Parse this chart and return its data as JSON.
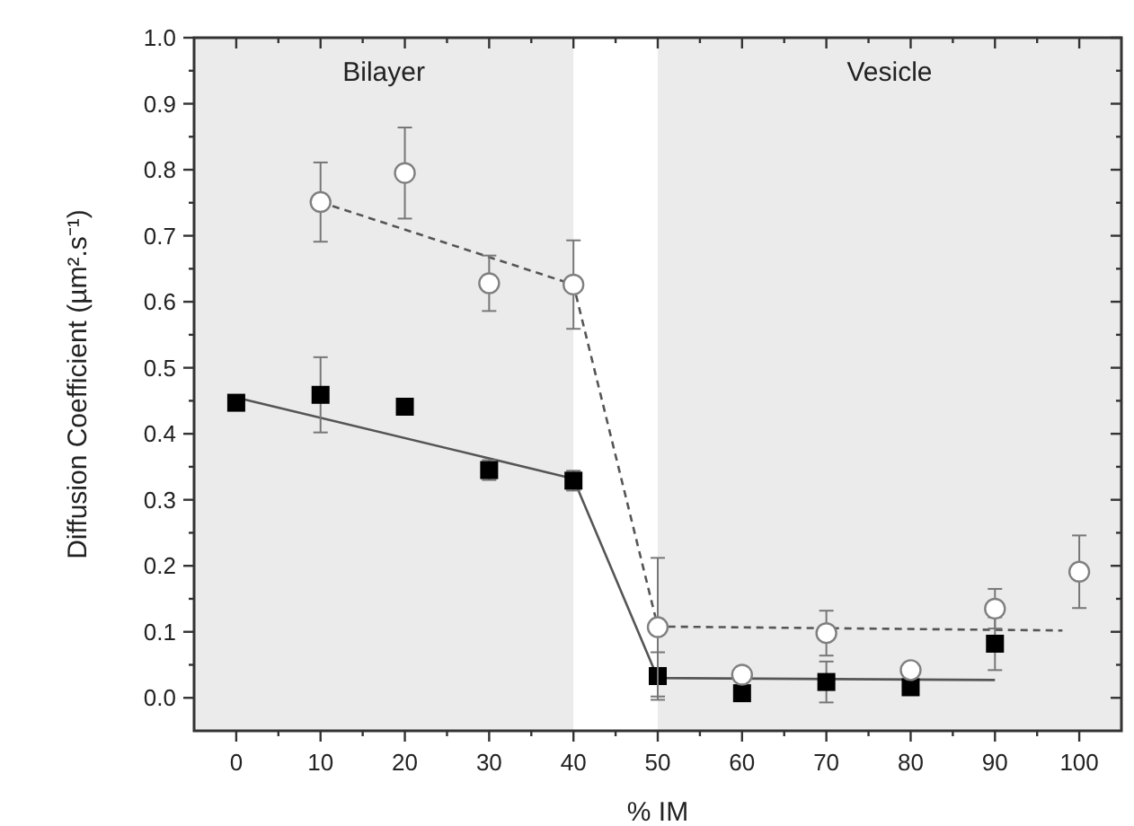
{
  "chart_data": {
    "type": "scatter",
    "xlabel": "% IM",
    "ylabel": "Diffusion Coefficient (µm².s⁻¹)",
    "xlim": [
      -5,
      105
    ],
    "ylim": [
      -0.05,
      1.0
    ],
    "xticks": [
      0,
      {
        "value": 5,
        "label": null
      },
      10,
      {
        "value": 15,
        "label": null
      },
      20,
      {
        "value": 25,
        "label": null
      },
      30,
      {
        "value": 35,
        "label": null
      },
      40,
      {
        "value": 45,
        "label": null
      },
      50,
      {
        "value": 55,
        "label": null
      },
      60,
      {
        "value": 65,
        "label": null
      },
      70,
      {
        "value": 75,
        "label": null
      },
      80,
      {
        "value": 85,
        "label": null
      },
      90,
      {
        "value": 95,
        "label": null
      },
      100
    ],
    "yticks": [
      {
        "value": 0,
        "label": "0.0"
      },
      {
        "value": 0.05,
        "label": null
      },
      {
        "value": 0.1,
        "label": "0.1"
      },
      {
        "value": 0.15,
        "label": null
      },
      {
        "value": 0.2,
        "label": "0.2"
      },
      {
        "value": 0.25,
        "label": null
      },
      {
        "value": 0.3,
        "label": "0.3"
      },
      {
        "value": 0.35,
        "label": null
      },
      {
        "value": 0.4,
        "label": "0.4"
      },
      {
        "value": 0.45,
        "label": null
      },
      {
        "value": 0.5,
        "label": "0.5"
      },
      {
        "value": 0.55,
        "label": null
      },
      {
        "value": 0.6,
        "label": "0.6"
      },
      {
        "value": 0.65,
        "label": null
      },
      {
        "value": 0.7,
        "label": "0.7"
      },
      {
        "value": 0.75,
        "label": null
      },
      {
        "value": 0.8,
        "label": "0.8"
      },
      {
        "value": 0.85,
        "label": null
      },
      {
        "value": 0.9,
        "label": "0.9"
      },
      {
        "value": 0.95,
        "label": null
      },
      {
        "value": 1,
        "label": "1.0"
      }
    ],
    "grid": false,
    "bands": [
      {
        "axis": "x",
        "from": -5,
        "to": 40,
        "label": "Bilayer",
        "color": "#ebebeb"
      },
      {
        "axis": "x",
        "from": 50,
        "to": 105,
        "label": "Vesicle",
        "color": "#ebebeb"
      }
    ],
    "series": [
      {
        "type": "line",
        "color": "#555555",
        "line_style": "solid",
        "x": [
          0,
          40,
          50,
          90
        ],
        "values": [
          0.455,
          0.332,
          0.03,
          0.027
        ]
      },
      {
        "type": "line",
        "color": "#555555",
        "line_style": "dashed",
        "x": [
          10,
          40,
          50,
          98
        ],
        "values": [
          0.751,
          0.626,
          0.108,
          0.102
        ]
      },
      {
        "marker": "square",
        "color": "#000000",
        "x": [
          0,
          10,
          20,
          30,
          40,
          50,
          60,
          70,
          80,
          90
        ],
        "values": [
          0.447,
          0.459,
          0.441,
          0.345,
          0.329,
          0.033,
          0.007,
          0.024,
          0.016,
          0.082
        ],
        "errors": [
          null,
          0.057,
          0.012,
          0.015,
          0.015,
          0.036,
          null,
          0.031,
          null,
          0.04
        ]
      },
      {
        "marker": "circle",
        "color": "#808080",
        "x": [
          10,
          20,
          30,
          40,
          50,
          60,
          70,
          80,
          90,
          100
        ],
        "values": [
          0.751,
          0.795,
          0.628,
          0.626,
          0.107,
          0.035,
          0.098,
          0.042,
          0.135,
          0.191
        ],
        "errors": [
          0.06,
          0.069,
          0.042,
          0.067,
          0.105,
          null,
          0.034,
          null,
          0.03,
          0.055
        ]
      }
    ]
  }
}
